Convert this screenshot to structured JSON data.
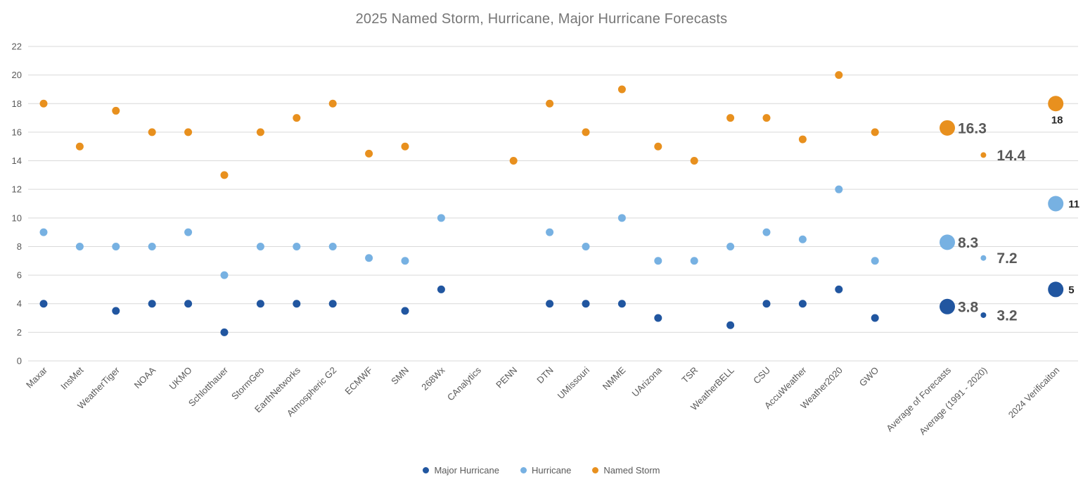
{
  "title": "2025 Named Storm, Hurricane, Major Hurricane Forecasts",
  "colors": {
    "background": "#ffffff",
    "gridline": "#d9d9d9",
    "axis_text": "#595959",
    "title_text": "#767676",
    "average_label": "#595959",
    "verification_label": "#262626"
  },
  "legend": {
    "items": [
      {
        "id": "major-hurricane",
        "label": "Major Hurricane",
        "color": "#2156A0"
      },
      {
        "id": "hurricane",
        "label": "Hurricane",
        "color": "#77B1E2"
      },
      {
        "id": "named-storm",
        "label": "Named Storm",
        "color": "#E8901E"
      }
    ]
  },
  "chart_data": {
    "type": "scatter",
    "title": "2025 Named Storm, Hurricane, Major Hurricane Forecasts",
    "ylim": [
      0,
      22
    ],
    "y_ticks": [
      0,
      2,
      4,
      6,
      8,
      10,
      12,
      14,
      16,
      18,
      20,
      22
    ],
    "grid": true,
    "legend_position": "bottom",
    "series_names": {
      "named_storm": "Named Storm",
      "hurricane": "Hurricane",
      "major_hurricane": "Major Hurricane"
    },
    "series_colors": {
      "named_storm": "#E8901E",
      "hurricane": "#77B1E2",
      "major_hurricane": "#2156A0"
    },
    "categories": [
      {
        "label": "Maxar",
        "named_storm": 18,
        "hurricane": 9,
        "major_hurricane": 4
      },
      {
        "label": "InsMet",
        "named_storm": 15,
        "hurricane": 8,
        "major_hurricane": null
      },
      {
        "label": "WeatherTiger",
        "named_storm": 17.5,
        "hurricane": 8,
        "major_hurricane": 3.5
      },
      {
        "label": "NOAA",
        "named_storm": 16,
        "hurricane": 8,
        "major_hurricane": 4
      },
      {
        "label": "UKMO",
        "named_storm": 16,
        "hurricane": 9,
        "major_hurricane": 4
      },
      {
        "label": "Schlotthauer",
        "named_storm": 13,
        "hurricane": 6,
        "major_hurricane": 2
      },
      {
        "label": "StormGeo",
        "named_storm": 16,
        "hurricane": 8,
        "major_hurricane": 4
      },
      {
        "label": "EarthNetworks",
        "named_storm": 17,
        "hurricane": 8,
        "major_hurricane": 4
      },
      {
        "label": "Atmospheric G2",
        "named_storm": 18,
        "hurricane": 8,
        "major_hurricane": 4
      },
      {
        "label": "ECMWF",
        "named_storm": 14.5,
        "hurricane": 7.2,
        "major_hurricane": null
      },
      {
        "label": "SMN",
        "named_storm": 15,
        "hurricane": 7,
        "major_hurricane": 3.5
      },
      {
        "label": "268Wx",
        "named_storm": null,
        "hurricane": 10,
        "major_hurricane": 5
      },
      {
        "label": "CAnalytics",
        "named_storm": null,
        "hurricane": null,
        "major_hurricane": null
      },
      {
        "label": "PENN",
        "named_storm": 14,
        "hurricane": null,
        "major_hurricane": null
      },
      {
        "label": "DTN",
        "named_storm": 18,
        "hurricane": 9,
        "major_hurricane": 4
      },
      {
        "label": "UMissouri",
        "named_storm": 16,
        "hurricane": 8,
        "major_hurricane": 4
      },
      {
        "label": "NMME",
        "named_storm": 19,
        "hurricane": 10,
        "major_hurricane": 4
      },
      {
        "label": "UArizona",
        "named_storm": 15,
        "hurricane": 7,
        "major_hurricane": 3
      },
      {
        "label": "TSR",
        "named_storm": 14,
        "hurricane": 7,
        "major_hurricane": null
      },
      {
        "label": "WeatherBELL",
        "named_storm": 17,
        "hurricane": 8,
        "major_hurricane": 2.5
      },
      {
        "label": "CSU",
        "named_storm": 17,
        "hurricane": 9,
        "major_hurricane": 4
      },
      {
        "label": "AccuWeather",
        "named_storm": 15.5,
        "hurricane": 8.5,
        "major_hurricane": 4
      },
      {
        "label": "Weather2020",
        "named_storm": 20,
        "hurricane": 12,
        "major_hurricane": 5
      },
      {
        "label": "GWO",
        "named_storm": 16,
        "hurricane": 7,
        "major_hurricane": 3
      },
      {
        "label": "Average of Forecasts",
        "named_storm": 16.3,
        "hurricane": 8.3,
        "major_hurricane": 3.8,
        "emphasis": "large",
        "gap_before": 1,
        "data_label_style": "average",
        "data_labels": {
          "named_storm": "16.3",
          "hurricane": "8.3",
          "major_hurricane": "3.8"
        }
      },
      {
        "label": "Average (1991 - 2020)",
        "named_storm": 14.4,
        "hurricane": 7.2,
        "major_hurricane": 3.2,
        "emphasis": "small",
        "data_label_style": "average",
        "data_labels": {
          "named_storm": "14.4",
          "hurricane": "7.2",
          "major_hurricane": "3.2"
        }
      },
      {
        "label": "2024 Verificaiton",
        "named_storm": 18,
        "hurricane": 11,
        "major_hurricane": 5,
        "emphasis": "large",
        "gap_before": 1,
        "data_label_style": "verification",
        "data_labels": {
          "named_storm": "18",
          "hurricane": "11",
          "major_hurricane": "5"
        },
        "label_placement": {
          "named_storm": "below",
          "hurricane": "right",
          "major_hurricane": "right"
        }
      }
    ]
  }
}
